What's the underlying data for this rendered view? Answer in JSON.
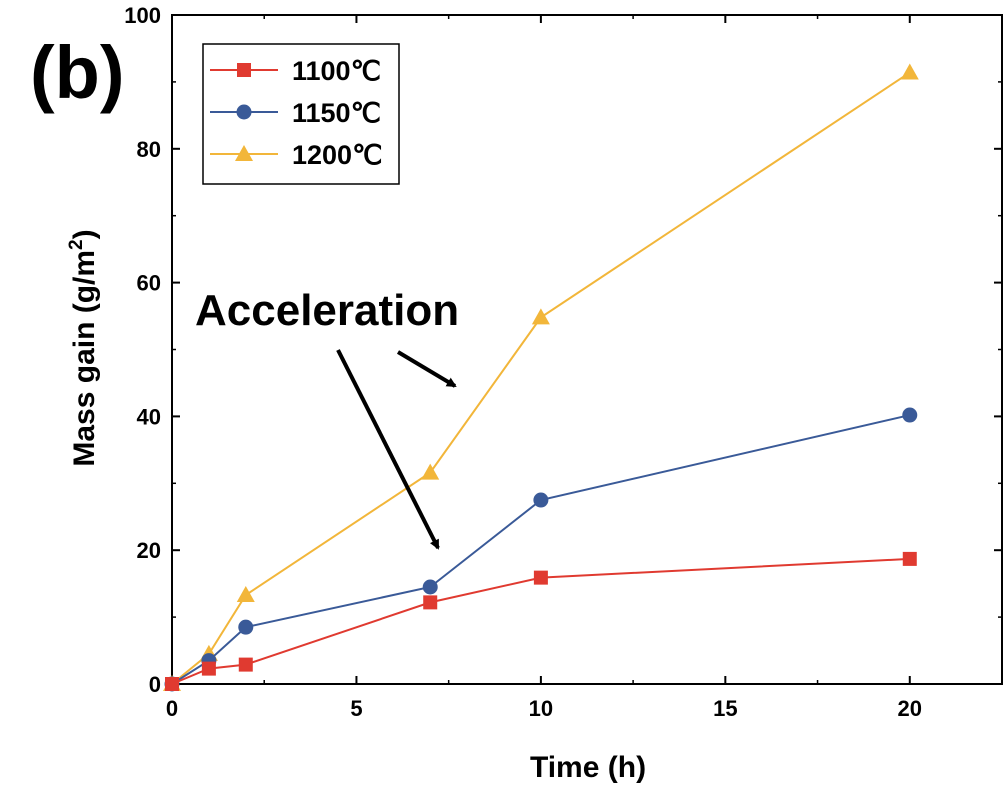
{
  "panel_label": "(b)",
  "annotation": "Acceleration",
  "chart_data": {
    "type": "line",
    "xlabel": "Time (h)",
    "ylabel_main": "Mass gain (g/m",
    "ylabel_sup": "2",
    "ylabel_close": ")",
    "xlim": [
      0,
      22.5
    ],
    "ylim": [
      0,
      100
    ],
    "xticks": [
      0,
      5,
      10,
      15,
      20
    ],
    "yticks": [
      0,
      20,
      40,
      60,
      80,
      100
    ],
    "grid": false,
    "legend_position": "top-left",
    "series": [
      {
        "name": "1100℃",
        "color": "#e03a30",
        "marker": "square",
        "x": [
          0,
          1,
          2,
          7,
          10,
          20
        ],
        "y": [
          0,
          2.3,
          2.9,
          12.2,
          15.9,
          18.7
        ]
      },
      {
        "name": "1150℃",
        "color": "#3a5a98",
        "marker": "circle",
        "x": [
          0,
          1,
          2,
          7,
          10,
          20
        ],
        "y": [
          0,
          3.5,
          8.5,
          14.5,
          27.5,
          40.2
        ]
      },
      {
        "name": "1200℃",
        "color": "#f2b63a",
        "marker": "triangle",
        "x": [
          0,
          1,
          2,
          7,
          10,
          20
        ],
        "y": [
          0,
          4.5,
          13.3,
          31.6,
          54.8,
          91.4
        ]
      }
    ]
  }
}
